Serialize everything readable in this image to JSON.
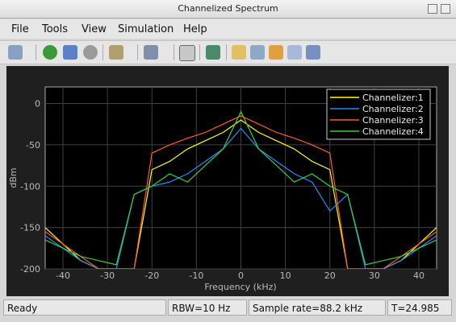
{
  "window": {
    "title": "Channelized Spectrum"
  },
  "menu": [
    "File",
    "Tools",
    "View",
    "Simulation",
    "Help"
  ],
  "status": [
    "Ready",
    "RBW=10 Hz",
    "Sample rate=88.2 kHz",
    "T=24.985"
  ],
  "chart_data": {
    "type": "line",
    "xlabel": "Frequency (kHz)",
    "ylabel": "dBm",
    "x": [
      -44,
      -40,
      -36,
      -32,
      -28,
      -24,
      -20,
      -16,
      -12,
      -8,
      -4,
      0,
      4,
      8,
      12,
      16,
      20,
      24,
      28,
      32,
      36,
      40,
      44
    ],
    "series": [
      {
        "name": "Channelizer:1",
        "color": "#ffff00",
        "values": [
          -150,
          -170,
          -190,
          -200,
          -200,
          -200,
          -80,
          -70,
          -55,
          -45,
          -35,
          -20,
          -35,
          -45,
          -55,
          -70,
          -80,
          -200,
          -200,
          -200,
          -190,
          -170,
          -150
        ]
      },
      {
        "name": "Channelizer:2",
        "color": "#1e90ff",
        "values": [
          -160,
          -175,
          -190,
          -200,
          -200,
          -110,
          -100,
          -95,
          -85,
          -70,
          -55,
          -30,
          -55,
          -70,
          -85,
          -95,
          -130,
          -110,
          -200,
          -200,
          -190,
          -175,
          -160
        ]
      },
      {
        "name": "Channelizer:3",
        "color": "#ff5a28",
        "values": [
          -155,
          -170,
          -185,
          -200,
          -200,
          -200,
          -60,
          -50,
          -42,
          -35,
          -25,
          -15,
          -25,
          -35,
          -42,
          -50,
          -60,
          -200,
          -200,
          -200,
          -185,
          -170,
          -155
        ]
      },
      {
        "name": "Channelizer:4",
        "color": "#3ccc3c",
        "values": [
          -165,
          -175,
          -185,
          -190,
          -195,
          -110,
          -100,
          -85,
          -95,
          -75,
          -55,
          -10,
          -55,
          -75,
          -95,
          -85,
          -100,
          -110,
          -195,
          -190,
          -185,
          -175,
          -165
        ]
      }
    ],
    "xlim": [
      -44,
      44
    ],
    "ylim": [
      -200,
      20
    ],
    "xticks": [
      -40,
      -30,
      -20,
      -10,
      0,
      10,
      20,
      30,
      40
    ],
    "yticks": [
      -200,
      -150,
      -100,
      -50,
      0
    ],
    "grid": true,
    "legend": "upper right"
  }
}
